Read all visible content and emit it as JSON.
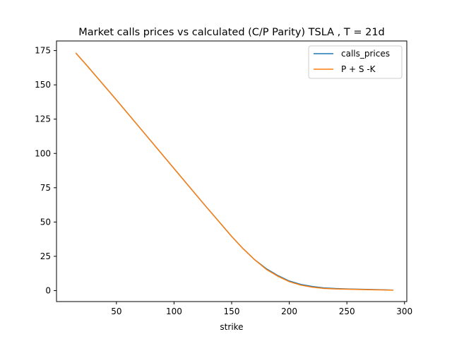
{
  "chart_data": {
    "type": "line",
    "title": "Market calls prices vs calculated (C/P Parity) TSLA , T = 21d",
    "xlabel": "strike",
    "ylabel": "",
    "xlim": [
      -2,
      302
    ],
    "ylim": [
      -8,
      182
    ],
    "xticks": [
      50,
      100,
      150,
      200,
      250,
      300
    ],
    "yticks": [
      0,
      25,
      50,
      75,
      100,
      125,
      150,
      175
    ],
    "legend_position": "top-right",
    "grid": false,
    "series": [
      {
        "name": "calls_prices",
        "color": "#1f77b4",
        "x": [
          15,
          25,
          50,
          75,
          100,
          125,
          150,
          160,
          170,
          180,
          190,
          200,
          210,
          220,
          230,
          240,
          250,
          260,
          270,
          280,
          290
        ],
        "y": [
          173,
          163.5,
          139,
          114,
          89,
          64,
          39.5,
          30.5,
          22.5,
          16,
          11,
          7,
          4.5,
          3,
          2,
          1.5,
          1.2,
          1,
          0.8,
          0.6,
          0.4
        ]
      },
      {
        "name": "P + S -K",
        "color": "#ff7f0e",
        "x": [
          15,
          25,
          50,
          75,
          100,
          125,
          150,
          160,
          170,
          180,
          190,
          200,
          210,
          220,
          230,
          240,
          250,
          260,
          270,
          280,
          290
        ],
        "y": [
          173,
          163.5,
          139,
          114,
          89,
          64,
          39.5,
          30.5,
          22.5,
          15.5,
          10.5,
          6.5,
          4,
          2.5,
          1.6,
          1.2,
          1,
          0.8,
          0.6,
          0.5,
          0.3
        ]
      }
    ]
  }
}
